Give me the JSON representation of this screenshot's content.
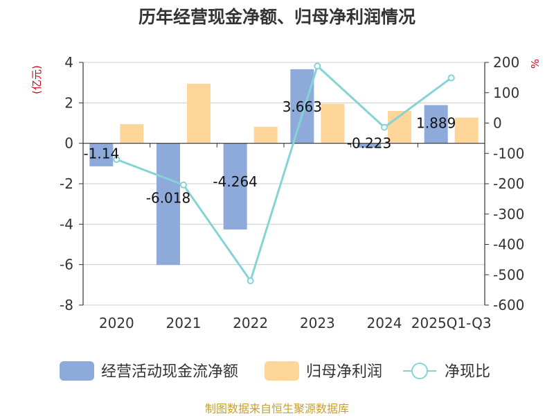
{
  "chart_data": {
    "type": "bar",
    "title": "历年经营现金净额、归母净利润情况",
    "categories": [
      "2020",
      "2021",
      "2022",
      "2023",
      "2024",
      "2025Q1-Q3"
    ],
    "series": [
      {
        "name": "经营活动现金流净额",
        "type": "bar",
        "axis": "left",
        "color": "#8eaadb",
        "values": [
          -1.14,
          -6.018,
          -4.264,
          3.663,
          -0.223,
          1.889
        ],
        "labels": [
          "-1.14",
          "-6.018",
          "-4.264",
          "3.663",
          "-0.223",
          "1.889"
        ]
      },
      {
        "name": "归母净利润",
        "type": "bar",
        "axis": "left",
        "color": "#ffd699",
        "values": [
          0.95,
          2.95,
          0.82,
          1.95,
          1.6,
          1.27
        ]
      },
      {
        "name": "净现比",
        "type": "line",
        "axis": "right",
        "color": "#86d3d6",
        "values": [
          -120,
          -204,
          -520,
          188,
          -14,
          149
        ]
      }
    ],
    "y_left": {
      "unit": "(亿元)",
      "ylim": [
        -8,
        4
      ],
      "ticks": [
        "-8",
        "-6",
        "-4",
        "-2",
        "0",
        "2",
        "4"
      ]
    },
    "y_right": {
      "unit": "%",
      "ylim": [
        -600,
        200
      ],
      "ticks": [
        "-600",
        "-500",
        "-400",
        "-300",
        "-200",
        "-100",
        "0",
        "100",
        "200"
      ]
    },
    "grid": true,
    "legend_position": "bottom",
    "source": "制图数据来自恒生聚源数据库"
  }
}
